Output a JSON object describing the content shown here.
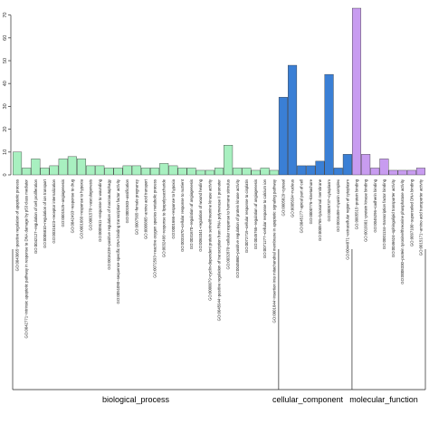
{
  "chart_data": {
    "type": "bar",
    "ylim": [
      0,
      75
    ],
    "yticks": [
      0,
      10,
      20,
      30,
      40,
      50,
      60,
      70
    ],
    "grid": false,
    "colors": {
      "biological_process": "#a8f0c0",
      "cellular_component": "#3a7fd5",
      "molecular_function": "#c89cf0"
    },
    "groups": [
      {
        "name": "biological_process",
        "color_key": "biological_process",
        "terms": [
          "GO:0043065~positive regulation of apoptotic process",
          "GO:0042771~intrinsic apoptotic pathway in response to DNA damage by p53 class mediator",
          "GO:0042127~regulation of cell proliferation",
          "GO:0006810~regulation of ion transport",
          "GO:0031623~receptor internalization",
          "GO:0001525~angiogenesis",
          "GO:0042493~response to drug",
          "GO:0001666~response to hypoxia",
          "GO:0001570~vasculogenesis",
          "GO:0009611~response to wounding",
          "GO:0016239~positive regulation of macroautophagy",
          "GO:0051090~sequence-specific DNA binding transcription factor activity",
          "GO:0001503~ossification",
          "GO:0007565~female pregnancy",
          "GO:0006865~amino acid transport",
          "GO:0072593~reactive oxygen species metabolic process",
          "GO:0032496~response to lipopolysaccharide",
          "GO:0001666~response to hypoxia",
          "GO:0031670~cellular response to nutrient",
          "GO:0031670~regulation of angiogenesis",
          "GO:0061041~regulation of wound healing",
          "GO:0000079~cyclin-dependent protein serine/threonine kinase activity",
          "GO:0045944~positive regulation of transcription from RNA polymerase II promoter",
          "GO:0032870~cellular response to hormone stimulus",
          "GO:0045860~positive regulation of protein kinase activity",
          "GO:0072719~cellular response to cisplatin",
          "GO:0045765~regulation of angiogenesis",
          "GO:0071277~cellular response to calcium ion",
          "GO:0001844~insertion into mitochondrial membrane in apoptotic signaling pathway"
        ],
        "values": [
          10,
          3,
          7,
          3,
          4,
          7,
          8,
          7,
          4,
          4,
          3,
          3,
          4,
          4,
          3,
          3,
          5,
          4,
          3,
          3,
          2,
          2,
          3,
          13,
          3,
          3,
          2,
          3,
          2
        ]
      },
      {
        "name": "cellular_component",
        "color_key": "cellular_component",
        "terms": [
          "GO:0005829~cytosol",
          "GO:0005634~nucleus",
          "GO:0045177~apical part of cell",
          "GO:0000776~kinetochore",
          "GO:0005765~lysosomal membrane",
          "GO:0005737~cytoplasm",
          "GO:0016459~myosin complex",
          "GO:0044871~extracellular region of cytoplasm"
        ],
        "values": [
          34,
          48,
          4,
          4,
          6,
          44,
          3,
          9
        ]
      },
      {
        "name": "molecular_function",
        "color_key": "molecular_function",
        "terms": [
          "GO:0005515~protein binding",
          "GO:0019901~protein kinase binding",
          "GO:0045296~cadherin binding",
          "GO:0001134~transcription factor binding",
          "GO:0046624~sphingolipid transporter activity",
          "GO:0008330~protein tyrosine/threonine phosphatase activity",
          "GO:0097100~supercoiled DNA binding",
          "GO:0015171~amino acid transporter activity"
        ],
        "values": [
          73,
          9,
          3,
          7,
          2,
          2,
          2,
          3
        ]
      }
    ],
    "group_labels": [
      "biological_process",
      "cellular_component",
      "molecular_function"
    ]
  }
}
